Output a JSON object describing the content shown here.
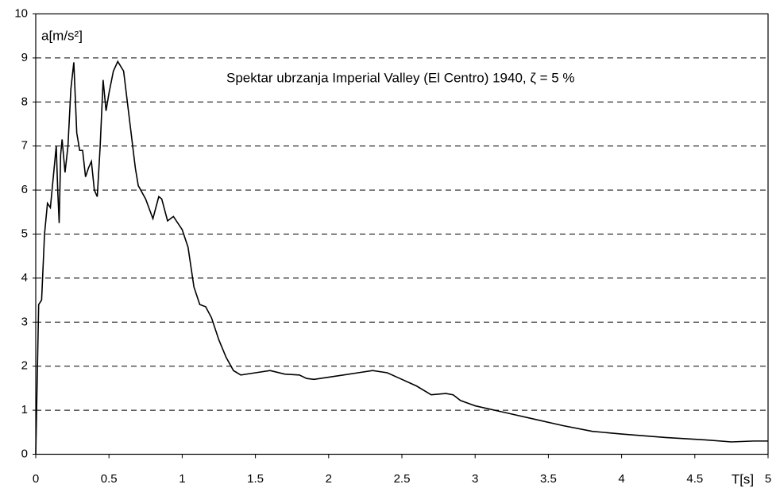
{
  "chart_data": {
    "type": "line",
    "ylabel": "a[m/s²]",
    "xlabel": "T[s]",
    "annotation": "Spektar ubrzanja Imperial Valley (El Centro) 1940, ζ = 5 %",
    "x": [
      0,
      0.02,
      0.04,
      0.06,
      0.08,
      0.1,
      0.12,
      0.14,
      0.15,
      0.16,
      0.17,
      0.18,
      0.2,
      0.22,
      0.24,
      0.26,
      0.28,
      0.3,
      0.32,
      0.34,
      0.36,
      0.38,
      0.4,
      0.42,
      0.44,
      0.46,
      0.48,
      0.5,
      0.53,
      0.56,
      0.6,
      0.64,
      0.68,
      0.7,
      0.75,
      0.8,
      0.84,
      0.86,
      0.9,
      0.94,
      1.0,
      1.04,
      1.08,
      1.12,
      1.16,
      1.2,
      1.25,
      1.3,
      1.35,
      1.4,
      1.5,
      1.6,
      1.7,
      1.8,
      1.85,
      1.9,
      2.0,
      2.1,
      2.2,
      2.3,
      2.4,
      2.5,
      2.6,
      2.7,
      2.8,
      2.85,
      2.9,
      3.0,
      3.2,
      3.4,
      3.6,
      3.8,
      4.0,
      4.3,
      4.6,
      4.75,
      4.9,
      5.0
    ],
    "series": [
      {
        "name": "Spektar",
        "color": "#000000",
        "values": [
          0,
          3.4,
          3.5,
          5.0,
          5.7,
          5.6,
          6.3,
          7.0,
          6.0,
          5.25,
          6.8,
          7.15,
          6.4,
          7.0,
          8.3,
          8.9,
          7.3,
          6.9,
          6.9,
          6.3,
          6.5,
          6.65,
          6.0,
          5.85,
          7.0,
          8.5,
          7.8,
          8.2,
          8.7,
          8.92,
          8.7,
          7.6,
          6.5,
          6.1,
          5.8,
          5.35,
          5.85,
          5.8,
          5.3,
          5.4,
          5.1,
          4.7,
          3.8,
          3.4,
          3.35,
          3.1,
          2.6,
          2.2,
          1.9,
          1.8,
          1.85,
          1.9,
          1.82,
          1.8,
          1.72,
          1.7,
          1.75,
          1.8,
          1.85,
          1.9,
          1.85,
          1.7,
          1.55,
          1.35,
          1.38,
          1.35,
          1.22,
          1.1,
          0.95,
          0.8,
          0.65,
          0.52,
          0.46,
          0.38,
          0.32,
          0.28,
          0.3,
          0.3
        ]
      }
    ],
    "xlim": [
      0,
      5
    ],
    "xticks": [
      0,
      0.5,
      1,
      1.5,
      2,
      2.5,
      3,
      3.5,
      4,
      4.5,
      5
    ],
    "ylim": [
      0,
      10
    ],
    "yticks": [
      0,
      1,
      2,
      3,
      4,
      5,
      6,
      7,
      8,
      9,
      10
    ],
    "grid": true
  }
}
